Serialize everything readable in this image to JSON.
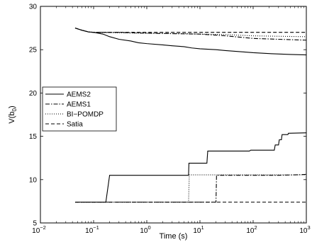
{
  "chart_data": {
    "type": "line",
    "xlabel": "Time (s)",
    "ylabel_main": "V(b",
    "ylabel_sub": "0",
    "ylabel_close": ")",
    "xscale": "log",
    "xlim": [
      0.01,
      1000
    ],
    "ylim": [
      5,
      30
    ],
    "x_ticks": [
      {
        "value": 0.01,
        "base": "10",
        "exp": "−2"
      },
      {
        "value": 0.1,
        "base": "10",
        "exp": "−1"
      },
      {
        "value": 1,
        "base": "10",
        "exp": "0"
      },
      {
        "value": 10,
        "base": "10",
        "exp": "1"
      },
      {
        "value": 100,
        "base": "10",
        "exp": "2"
      },
      {
        "value": 1000,
        "base": "10",
        "exp": "3"
      }
    ],
    "y_ticks": [
      5,
      10,
      15,
      20,
      25,
      30
    ],
    "grid": false,
    "legend_position": "left",
    "series": [
      {
        "name": "AEMS2",
        "dash": "solid",
        "color": "#000000",
        "upper": [
          [
            0.045,
            27.5
          ],
          [
            0.06,
            27.25
          ],
          [
            0.08,
            27.05
          ],
          [
            0.1,
            27.0
          ],
          [
            0.15,
            26.8
          ],
          [
            0.2,
            26.5
          ],
          [
            0.3,
            26.2
          ],
          [
            0.5,
            26.0
          ],
          [
            0.7,
            25.8
          ],
          [
            1,
            25.7
          ],
          [
            2,
            25.55
          ],
          [
            3,
            25.45
          ],
          [
            5,
            25.35
          ],
          [
            7,
            25.2
          ],
          [
            10,
            25.1
          ],
          [
            20,
            25.0
          ],
          [
            30,
            24.9
          ],
          [
            50,
            24.8
          ],
          [
            100,
            24.65
          ],
          [
            200,
            24.55
          ],
          [
            500,
            24.45
          ],
          [
            1000,
            24.4
          ]
        ],
        "lower": [
          [
            0.045,
            7.4
          ],
          [
            0.17,
            7.4
          ],
          [
            0.2,
            10.5
          ],
          [
            6.1,
            10.5
          ],
          [
            6.2,
            11.9
          ],
          [
            13.5,
            11.9
          ],
          [
            14,
            13.3
          ],
          [
            85,
            13.3
          ],
          [
            90,
            13.4
          ],
          [
            250,
            13.4
          ],
          [
            260,
            14.0
          ],
          [
            300,
            14.0
          ],
          [
            310,
            14.6
          ],
          [
            340,
            14.6
          ],
          [
            350,
            15.2
          ],
          [
            450,
            15.2
          ],
          [
            460,
            15.35
          ],
          [
            1000,
            15.4
          ]
        ]
      },
      {
        "name": "AEMS1",
        "dash": "dashdot",
        "color": "#000000",
        "upper": [
          [
            0.045,
            27.5
          ],
          [
            0.06,
            27.25
          ],
          [
            0.08,
            27.05
          ],
          [
            0.1,
            27.0
          ],
          [
            0.3,
            27.0
          ],
          [
            0.5,
            26.95
          ],
          [
            1,
            26.9
          ],
          [
            3,
            26.85
          ],
          [
            10,
            26.8
          ],
          [
            30,
            26.6
          ],
          [
            100,
            26.3
          ],
          [
            300,
            26.2
          ],
          [
            1000,
            26.1
          ]
        ],
        "lower": [
          [
            0.045,
            7.4
          ],
          [
            20,
            7.4
          ],
          [
            20.5,
            10.5
          ],
          [
            300,
            10.5
          ],
          [
            600,
            10.55
          ],
          [
            1000,
            10.6
          ]
        ]
      },
      {
        "name": "BI−POMDP",
        "dash": "dotted",
        "color": "#000000",
        "upper": [
          [
            0.045,
            27.5
          ],
          [
            0.06,
            27.25
          ],
          [
            0.08,
            27.05
          ],
          [
            0.1,
            27.0
          ],
          [
            1,
            26.9
          ],
          [
            5,
            26.85
          ],
          [
            10,
            26.8
          ],
          [
            30,
            26.75
          ],
          [
            100,
            26.6
          ],
          [
            300,
            26.55
          ],
          [
            1000,
            26.5
          ]
        ],
        "lower": [
          [
            0.045,
            7.4
          ],
          [
            6.1,
            7.4
          ],
          [
            6.3,
            10.55
          ],
          [
            1000,
            10.55
          ]
        ]
      },
      {
        "name": "Satia",
        "dash": "dashed",
        "color": "#000000",
        "upper": [
          [
            0.045,
            27.5
          ],
          [
            0.06,
            27.25
          ],
          [
            0.08,
            27.05
          ],
          [
            0.1,
            27.0
          ],
          [
            1000,
            27.0
          ]
        ],
        "lower": [
          [
            0.045,
            7.4
          ],
          [
            1000,
            7.4
          ]
        ]
      }
    ]
  }
}
